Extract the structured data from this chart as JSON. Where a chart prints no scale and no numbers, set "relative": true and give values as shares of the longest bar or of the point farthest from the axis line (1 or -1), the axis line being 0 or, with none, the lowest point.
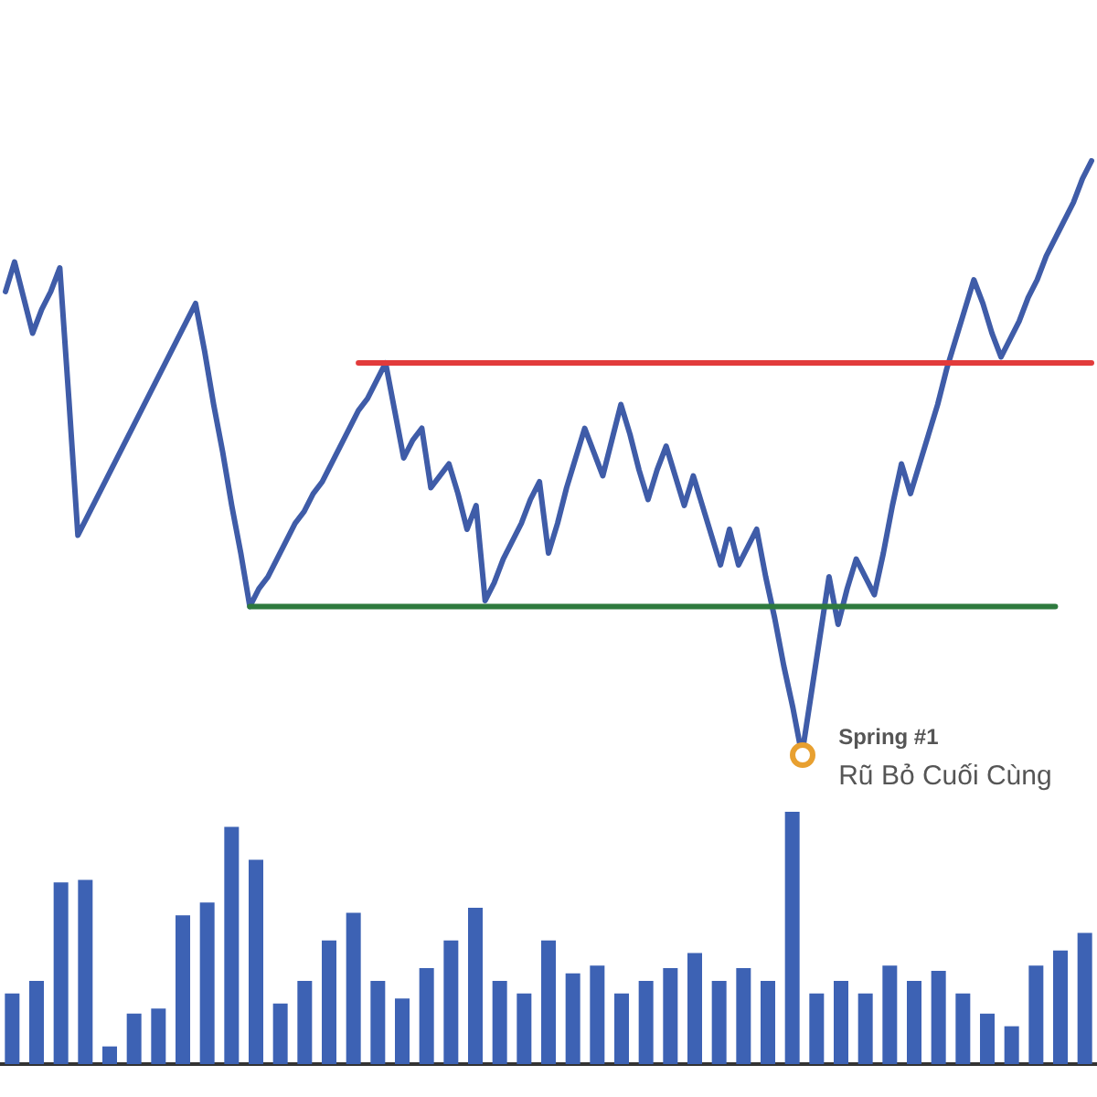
{
  "chart_data": [
    {
      "type": "line",
      "relative": true,
      "line_style": "solid",
      "categories": [
        null,
        null,
        null,
        null,
        null,
        null,
        null,
        null,
        null,
        null,
        null,
        null,
        null,
        null,
        null,
        null,
        null,
        null,
        null,
        null,
        null,
        null,
        null,
        null,
        null,
        null,
        null,
        null,
        null,
        null,
        null,
        null,
        null,
        null,
        null,
        null,
        null,
        null,
        null,
        null,
        null,
        null,
        null,
        null,
        null,
        null,
        null,
        null,
        null,
        null,
        null,
        null,
        null,
        null,
        null,
        null,
        null,
        null,
        null,
        null,
        null,
        null,
        null,
        null,
        null,
        null,
        null,
        null,
        null,
        null,
        null,
        null,
        null,
        null,
        null,
        null,
        null,
        null,
        null,
        null,
        null,
        null,
        null,
        null,
        null,
        null,
        null,
        null,
        null,
        null,
        null,
        null,
        null,
        null,
        null,
        null,
        null,
        null,
        null,
        null,
        null,
        null,
        null,
        null,
        null,
        null,
        null,
        null,
        null,
        null,
        null,
        null,
        null,
        null,
        null,
        null,
        null,
        null,
        null,
        null,
        null
      ],
      "series": [
        {
          "color": "#3f5ca8",
          "values": [
            0.78,
            0.83,
            0.77,
            0.71,
            0.75,
            0.78,
            0.82,
            0.6,
            0.37,
            0.4,
            0.43,
            0.46,
            0.49,
            0.52,
            0.55,
            0.58,
            0.61,
            0.64,
            0.67,
            0.7,
            0.73,
            0.76,
            0.68,
            0.59,
            0.51,
            0.42,
            0.34,
            0.25,
            0.28,
            0.3,
            0.33,
            0.36,
            0.39,
            0.41,
            0.44,
            0.46,
            0.49,
            0.52,
            0.55,
            0.58,
            0.6,
            0.63,
            0.66,
            0.58,
            0.5,
            0.53,
            0.55,
            0.45,
            0.47,
            0.49,
            0.44,
            0.38,
            0.42,
            0.26,
            0.29,
            0.33,
            0.36,
            0.39,
            0.43,
            0.46,
            0.34,
            0.39,
            0.45,
            0.5,
            0.55,
            0.51,
            0.47,
            0.53,
            0.59,
            0.54,
            0.48,
            0.43,
            0.48,
            0.52,
            0.47,
            0.42,
            0.47,
            0.42,
            0.37,
            0.32,
            0.38,
            0.32,
            0.35,
            0.38,
            0.3,
            0.23,
            0.15,
            0.08,
            0,
            0.1,
            0.2,
            0.3,
            0.22,
            0.28,
            0.33,
            0.3,
            0.27,
            0.34,
            0.42,
            0.49,
            0.44,
            0.49,
            0.54,
            0.59,
            0.65,
            0.7,
            0.75,
            0.8,
            0.76,
            0.71,
            0.67,
            0.7,
            0.73,
            0.77,
            0.8,
            0.84,
            0.87,
            0.9,
            0.93,
            0.97,
            1
          ]
        },
        {
          "color": "#e23b3b",
          "values": [
            null,
            null,
            null,
            null,
            null,
            null,
            null,
            null,
            null,
            null,
            null,
            null,
            null,
            null,
            null,
            null,
            null,
            null,
            null,
            null,
            null,
            null,
            null,
            null,
            null,
            null,
            null,
            null,
            null,
            null,
            null,
            null,
            null,
            null,
            null,
            null,
            null,
            null,
            null,
            0.66,
            0.66,
            0.66,
            0.66,
            0.66,
            0.66,
            0.66,
            0.66,
            0.66,
            0.66,
            0.66,
            0.66,
            0.66,
            0.66,
            0.66,
            0.66,
            0.66,
            0.66,
            0.66,
            0.66,
            0.66,
            0.66,
            0.66,
            0.66,
            0.66,
            0.66,
            0.66,
            0.66,
            0.66,
            0.66,
            0.66,
            0.66,
            0.66,
            0.66,
            0.66,
            0.66,
            0.66,
            0.66,
            0.66,
            0.66,
            0.66,
            0.66,
            0.66,
            0.66,
            0.66,
            0.66,
            0.66,
            0.66,
            0.66,
            0.66,
            0.66,
            0.66,
            0.66,
            0.66,
            0.66,
            0.66,
            0.66,
            0.66,
            0.66,
            0.66,
            0.66,
            0.66,
            0.66,
            0.66,
            0.66,
            0.66,
            0.66,
            0.66,
            0.66,
            0.66,
            0.66,
            0.66,
            0.66,
            0.66,
            0.66,
            0.66,
            0.66,
            0.66,
            0.66,
            0.66,
            0.66,
            0.66
          ]
        },
        {
          "color": "#2e7a3e",
          "values": [
            null,
            null,
            null,
            null,
            null,
            null,
            null,
            null,
            null,
            null,
            null,
            null,
            null,
            null,
            null,
            null,
            null,
            null,
            null,
            null,
            null,
            null,
            null,
            null,
            null,
            null,
            null,
            0.25,
            0.25,
            0.25,
            0.25,
            0.25,
            0.25,
            0.25,
            0.25,
            0.25,
            0.25,
            0.25,
            0.25,
            0.25,
            0.25,
            0.25,
            0.25,
            0.25,
            0.25,
            0.25,
            0.25,
            0.25,
            0.25,
            0.25,
            0.25,
            0.25,
            0.25,
            0.25,
            0.25,
            0.25,
            0.25,
            0.25,
            0.25,
            0.25,
            0.25,
            0.25,
            0.25,
            0.25,
            0.25,
            0.25,
            0.25,
            0.25,
            0.25,
            0.25,
            0.25,
            0.25,
            0.25,
            0.25,
            0.25,
            0.25,
            0.25,
            0.25,
            0.25,
            0.25,
            0.25,
            0.25,
            0.25,
            0.25,
            0.25,
            0.25,
            0.25,
            0.25,
            0.25,
            0.25,
            0.25,
            0.25,
            0.25,
            0.25,
            0.25,
            0.25,
            0.25,
            0.25,
            0.25,
            0.25,
            0.25,
            0.25,
            0.25,
            0.25,
            0.25,
            0.25,
            0.25,
            0.25,
            0.25,
            0.25,
            0.25,
            0.25,
            0.25,
            0.25,
            0.25,
            0.25,
            0.25,
            null,
            null,
            null,
            null
          ]
        }
      ],
      "annotations": [
        "Spring #1",
        "Rũ Bỏ Cuối Cùng"
      ]
    },
    {
      "type": "bar",
      "relative": true,
      "color": "#3d62b4",
      "categories": [
        null,
        null,
        null,
        null,
        null,
        null,
        null,
        null,
        null,
        null,
        null,
        null,
        null,
        null,
        null,
        null,
        null,
        null,
        null,
        null,
        null,
        null,
        null,
        null,
        null,
        null,
        null,
        null,
        null,
        null,
        null,
        null,
        null,
        null,
        null,
        null,
        null,
        null,
        null,
        null,
        null,
        null,
        null,
        null,
        null
      ],
      "values": [
        0.28,
        0.33,
        0.72,
        0.73,
        0.07,
        0.2,
        0.22,
        0.59,
        0.64,
        0.94,
        0.81,
        0.24,
        0.33,
        0.49,
        0.6,
        0.33,
        0.26,
        0.38,
        0.49,
        0.62,
        0.33,
        0.28,
        0.49,
        0.36,
        0.39,
        0.28,
        0.33,
        0.38,
        0.44,
        0.33,
        0.38,
        0.33,
        1,
        0.28,
        0.33,
        0.28,
        0.39,
        0.33,
        0.37,
        0.28,
        0.2,
        0.15,
        0.39,
        0.45,
        0.52
      ]
    }
  ]
}
